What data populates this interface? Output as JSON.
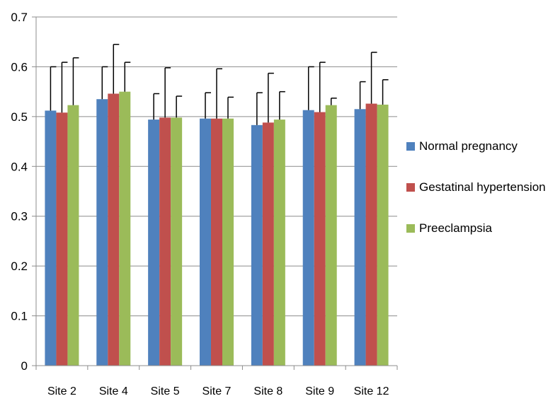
{
  "chart_data": {
    "type": "bar",
    "categories": [
      "Site 2",
      "Site 4",
      "Site 5",
      "Site 7",
      "Site 8",
      "Site 9",
      "Site 12"
    ],
    "series": [
      {
        "name": "Normal pregnancy",
        "color": "#4f81bd",
        "values": [
          0.512,
          0.535,
          0.494,
          0.496,
          0.483,
          0.513,
          0.515
        ],
        "error_upper": [
          0.6,
          0.6,
          0.546,
          0.548,
          0.548,
          0.6,
          0.57
        ]
      },
      {
        "name": "Gestatinal hypertension",
        "color": "#c0504d",
        "values": [
          0.508,
          0.546,
          0.498,
          0.496,
          0.488,
          0.509,
          0.526
        ],
        "error_upper": [
          0.609,
          0.645,
          0.598,
          0.596,
          0.587,
          0.609,
          0.629
        ]
      },
      {
        "name": "Preeclampsia",
        "color": "#9bbb59",
        "values": [
          0.523,
          0.55,
          0.498,
          0.496,
          0.494,
          0.523,
          0.524
        ],
        "error_upper": [
          0.618,
          0.609,
          0.541,
          0.539,
          0.55,
          0.537,
          0.574
        ]
      }
    ],
    "y_ticks": [
      "0",
      "0.1",
      "0.2",
      "0.3",
      "0.4",
      "0.5",
      "0.6",
      "0.7"
    ],
    "ylim": [
      0,
      0.7
    ],
    "grid": true,
    "legend_position": "right",
    "title": "",
    "xlabel": "",
    "ylabel": ""
  }
}
